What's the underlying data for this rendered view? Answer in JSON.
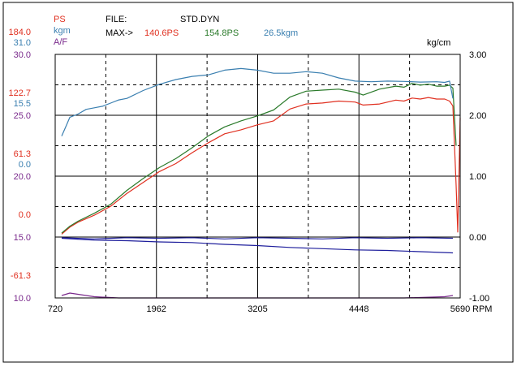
{
  "chart_data": {
    "type": "line",
    "header": {
      "ps_label": "PS",
      "kgm_label": "kgm",
      "af_label": "A/F",
      "file_label": "FILE:",
      "file_name": "STD.DYN",
      "max_label": "MAX->",
      "max_ps": "140.6PS",
      "max_ps2": "154.8PS",
      "max_kgm": "26.5kgm"
    },
    "right_unit": "kg/cm",
    "x_unit": "RPM",
    "colors": {
      "ps": "#e03020",
      "kgm": "#3a7fb0",
      "af": "#7a2a8c",
      "ps2": "#2a7a2a",
      "boost": "#1e1e9c",
      "frame": "#000000"
    },
    "x_ticks": [
      "720",
      "1962",
      "3205",
      "4448",
      "5690"
    ],
    "xlim": [
      720,
      5690
    ],
    "left_scale_rows": [
      {
        "ps": "184.0",
        "kgm": "31.0",
        "af": "30.0"
      },
      {
        "ps": "122.7",
        "kgm": "15.5",
        "af": "25.0"
      },
      {
        "ps": "61.3",
        "kgm": "0.0",
        "af": "20.0"
      },
      {
        "ps": "0.0",
        "kgm": "",
        "af": "15.0"
      },
      {
        "ps": "-61.3",
        "kgm": "",
        "af": "10.0"
      }
    ],
    "right_ticks": [
      "3.00",
      "2.00",
      "1.00",
      "0.00",
      "-1.00"
    ],
    "ps_range": [
      -61.3,
      184.0
    ],
    "kgm_range": [
      -46.5,
      31.0
    ],
    "af_range": [
      10.0,
      30.0
    ],
    "boost_range": [
      -1.0,
      3.0
    ],
    "series": [
      {
        "key": "ps",
        "axis": "ps",
        "x": [
          800,
          900,
          1000,
          1200,
          1400,
          1600,
          1800,
          2000,
          2200,
          2400,
          2600,
          2800,
          3000,
          3200,
          3400,
          3600,
          3800,
          4000,
          4200,
          4400,
          4500,
          4700,
          4900,
          5000,
          5100,
          5200,
          5300,
          5400,
          5500,
          5560,
          5600,
          5640,
          5660,
          5690
        ],
        "y": [
          3,
          10,
          15,
          22,
          31,
          44,
          55,
          66,
          74,
          85,
          95,
          104,
          108,
          113,
          117,
          129,
          134,
          135,
          137,
          136,
          133,
          134,
          138,
          137,
          140,
          139,
          140.6,
          139,
          139,
          137,
          132,
          52,
          5,
          120
        ]
      },
      {
        "key": "ps2",
        "axis": "ps",
        "x": [
          800,
          900,
          1000,
          1200,
          1400,
          1600,
          1800,
          2000,
          2200,
          2400,
          2600,
          2800,
          3000,
          3200,
          3400,
          3600,
          3800,
          4000,
          4200,
          4400,
          4500,
          4700,
          4900,
          5000,
          5100,
          5200,
          5300,
          5400,
          5500,
          5560,
          5600,
          5640
        ],
        "y": [
          4,
          11,
          16,
          24,
          33,
          47,
          59,
          70,
          79,
          90,
          102,
          111,
          117,
          122,
          128,
          141,
          147,
          148,
          149,
          146,
          143,
          149,
          152,
          151,
          154.8,
          153,
          154,
          152,
          152,
          153,
          150,
          92
        ]
      },
      {
        "key": "kgm",
        "axis": "kgm",
        "x": [
          800,
          850,
          900,
          1000,
          1100,
          1200,
          1300,
          1400,
          1500,
          1600,
          1800,
          2000,
          2200,
          2400,
          2600,
          2800,
          3000,
          3200,
          3400,
          3600,
          3800,
          4000,
          4200,
          4400,
          4600,
          4800,
          5000,
          5200,
          5400,
          5500,
          5560,
          5600
        ],
        "y": [
          5,
          8,
          11,
          12,
          13.5,
          14,
          14.5,
          15.5,
          16.5,
          17,
          19.5,
          21.5,
          23,
          24,
          24.5,
          26,
          26.5,
          26,
          25,
          25,
          25.5,
          25,
          23.5,
          22.5,
          22.3,
          22.5,
          22.4,
          22.2,
          22.3,
          22.1,
          22.5,
          17
        ]
      },
      {
        "key": "boost",
        "axis": "boost",
        "x": [
          800,
          1200,
          1600,
          2000,
          2400,
          2800,
          3200,
          3600,
          4000,
          4400,
          4800,
          5200,
          5600
        ],
        "y": [
          -0.02,
          -0.05,
          -0.06,
          -0.08,
          -0.09,
          -0.12,
          -0.14,
          -0.17,
          -0.19,
          -0.21,
          -0.22,
          -0.24,
          -0.26
        ]
      },
      {
        "key": "boost2",
        "axis": "boost",
        "x": [
          800,
          1200,
          1600,
          2000,
          2400,
          2800,
          3200,
          3600,
          4000,
          4400,
          4800,
          5200,
          5600
        ],
        "y": [
          -0.01,
          -0.03,
          -0.01,
          -0.02,
          -0.01,
          -0.03,
          -0.01,
          -0.02,
          -0.03,
          -0.01,
          -0.02,
          -0.01,
          -0.02
        ]
      },
      {
        "key": "af",
        "axis": "af",
        "x": [
          800,
          900,
          1000,
          1200,
          1500,
          2000,
          2500,
          3000,
          3500,
          4000,
          4500,
          5000,
          5500,
          5600
        ],
        "y": [
          10.2,
          10.4,
          10.3,
          10.1,
          10.0,
          10.0,
          10.0,
          10.0,
          10.0,
          10.0,
          10.0,
          10.0,
          10.1,
          10.2
        ]
      }
    ]
  }
}
